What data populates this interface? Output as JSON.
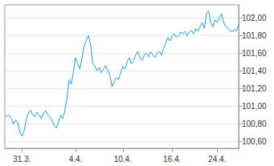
{
  "chart_data": {
    "type": "line",
    "color": "#1e9ad6",
    "grid": true,
    "categories": [
      null,
      null,
      null,
      null,
      null,
      null,
      null,
      null,
      "31.3.",
      null,
      null,
      null,
      null,
      null,
      null,
      null,
      null,
      null,
      null,
      null,
      null,
      null,
      null,
      null,
      null,
      null,
      null,
      null,
      null,
      null,
      null,
      null,
      null,
      "4.4.",
      null,
      null,
      null,
      null,
      null,
      null,
      null,
      null,
      null,
      null,
      null,
      null,
      null,
      null,
      null,
      null,
      null,
      null,
      null,
      null,
      null,
      "10.4.",
      null,
      null,
      null,
      null,
      null,
      null,
      null,
      null,
      null,
      null,
      null,
      null,
      null,
      null,
      null,
      null,
      null,
      null,
      null,
      null,
      null,
      null,
      "16.4.",
      null,
      null,
      null,
      null,
      null,
      null,
      null,
      null,
      null,
      null,
      null,
      null,
      null,
      null,
      null,
      null,
      null,
      null,
      null,
      null,
      "24.4.",
      null,
      null,
      null,
      null,
      null,
      null,
      null,
      null,
      null,
      null
    ],
    "values": [
      100.9,
      100.88,
      100.9,
      100.86,
      100.8,
      100.84,
      100.82,
      100.7,
      100.66,
      100.72,
      100.85,
      100.92,
      100.95,
      100.9,
      100.88,
      100.93,
      100.9,
      100.86,
      100.92,
      100.95,
      100.9,
      100.88,
      100.84,
      100.78,
      100.75,
      100.82,
      100.9,
      100.86,
      100.95,
      101.1,
      101.3,
      101.25,
      101.4,
      101.55,
      101.48,
      101.42,
      101.55,
      101.68,
      101.75,
      101.8,
      101.7,
      101.48,
      101.45,
      101.4,
      101.44,
      101.38,
      101.42,
      101.46,
      101.4,
      101.35,
      101.22,
      101.28,
      101.32,
      101.3,
      101.38,
      101.45,
      101.42,
      101.5,
      101.55,
      101.48,
      101.52,
      101.58,
      101.62,
      101.55,
      101.52,
      101.58,
      101.6,
      101.56,
      101.62,
      101.58,
      101.55,
      101.6,
      101.62,
      101.58,
      101.65,
      101.72,
      101.78,
      101.74,
      101.8,
      101.82,
      101.78,
      101.8,
      101.84,
      101.82,
      101.85,
      101.8,
      101.84,
      101.86,
      101.82,
      101.88,
      101.85,
      101.9,
      101.95,
      101.88,
      102.05,
      102.08,
      101.95,
      101.9,
      101.98,
      101.95,
      102.0,
      102.05,
      101.95,
      101.9,
      101.88,
      101.86,
      101.84,
      101.87,
      101.86,
      101.93
    ],
    "ylim": [
      100.52,
      102.15
    ],
    "yticks": [
      {
        "value": 100.6,
        "label": "100,60"
      },
      {
        "value": 100.8,
        "label": "100,80"
      },
      {
        "value": 101.0,
        "label": "101,00"
      },
      {
        "value": 101.2,
        "label": "101,20"
      },
      {
        "value": 101.4,
        "label": "101,40"
      },
      {
        "value": 101.6,
        "label": "101,60"
      },
      {
        "value": 101.8,
        "label": "101,80"
      },
      {
        "value": 102.0,
        "label": "102,00"
      }
    ]
  }
}
